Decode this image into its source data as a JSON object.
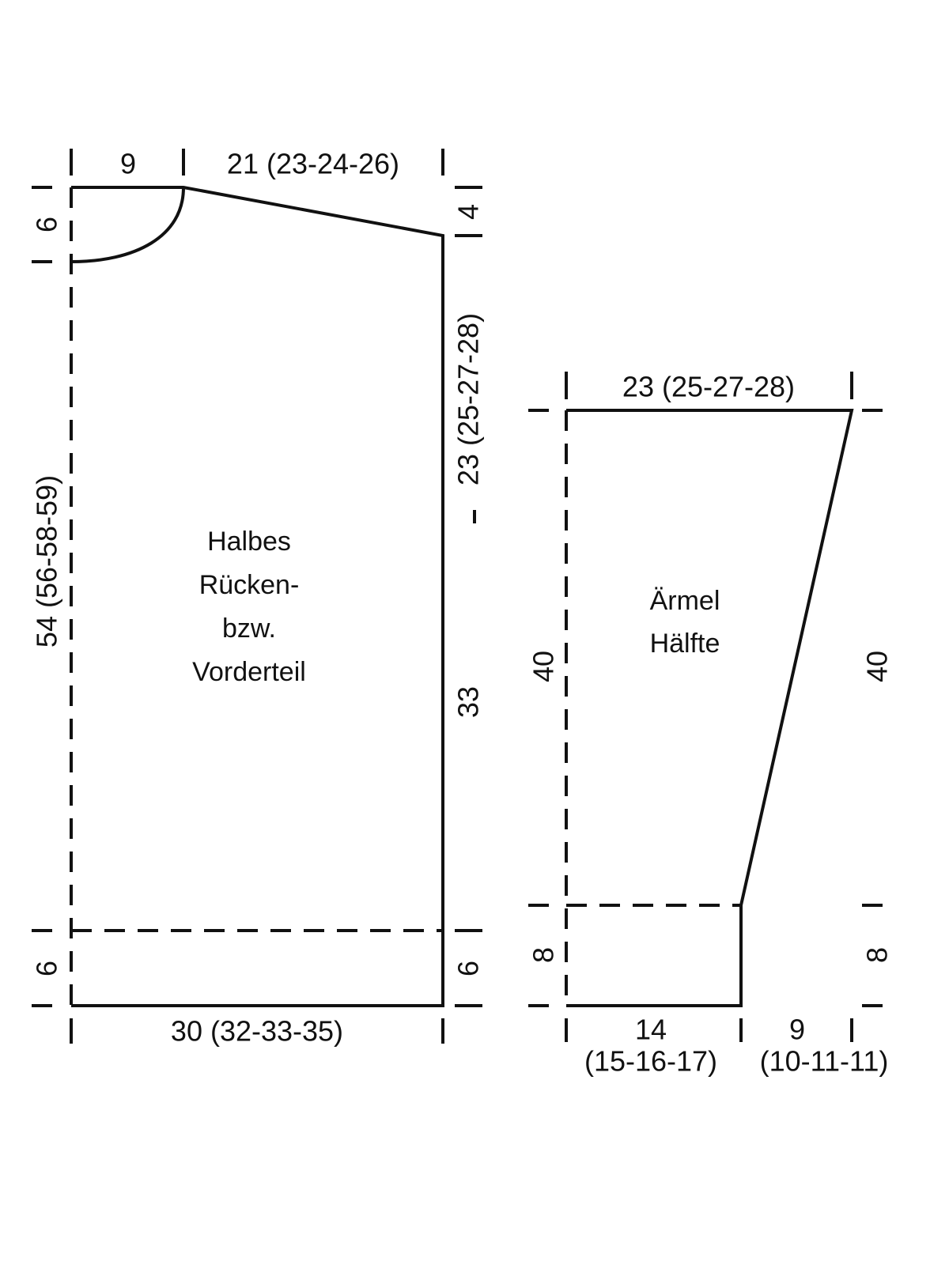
{
  "body": {
    "label": [
      "Halbes",
      "Rücken-",
      "bzw.",
      "Vorderteil"
    ],
    "dimensions": {
      "neck_width": "9",
      "shoulder_width": "21 (23-24-26)",
      "neck_depth": "6",
      "shoulder_slope": "4",
      "armhole": "23 (25-27-28)",
      "total_length": "54 (56-58-59)",
      "side_length": "33",
      "hem_left": "6",
      "hem_right": "6",
      "width": "30 (32-33-35)"
    }
  },
  "sleeve": {
    "label": [
      "Ärmel",
      "Hälfte"
    ],
    "dimensions": {
      "top_width": "23 (25-27-28)",
      "length_left": "40",
      "length_right": "40",
      "cuff_left": "8",
      "cuff_right": "8",
      "cuff_width": [
        "14",
        "(15-16-17)"
      ],
      "increase_width": [
        "9",
        "(10-11-11)"
      ]
    }
  }
}
